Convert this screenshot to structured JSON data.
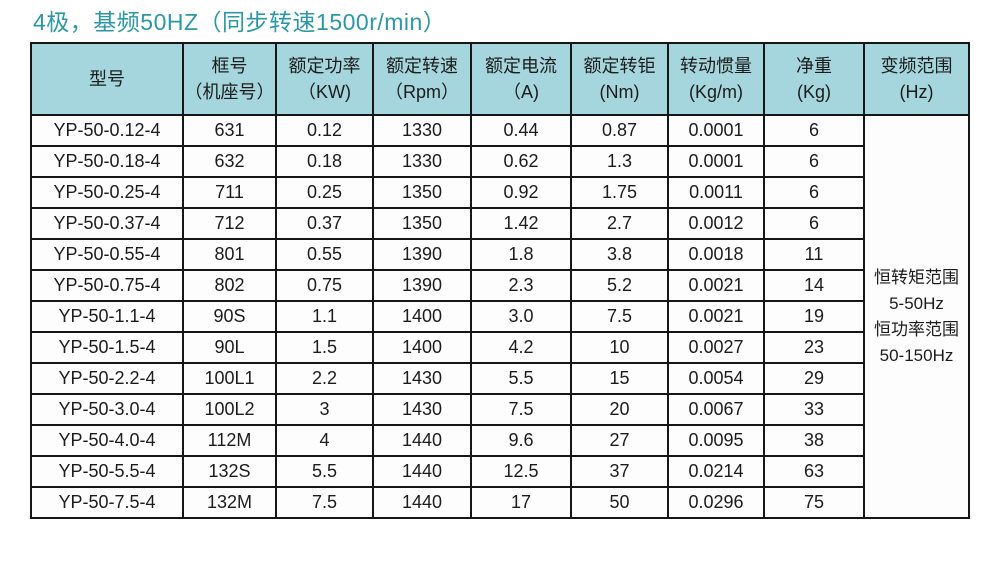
{
  "page_title": "4极，基频50HZ（同步转速1500r/min）",
  "table": {
    "columns": [
      {
        "name": "型号",
        "unit": ""
      },
      {
        "name": "框号",
        "unit": "（机座号）"
      },
      {
        "name": "额定功率",
        "unit": "（KW)"
      },
      {
        "name": "额定转速",
        "unit": "（Rpm）"
      },
      {
        "name": "额定电流",
        "unit": "（A)"
      },
      {
        "name": "额定转钜",
        "unit": "(Nm)"
      },
      {
        "name": "转动惯量",
        "unit": "(Kg/m)"
      },
      {
        "name": "净重",
        "unit": "(Kg)"
      },
      {
        "name": "变频范围",
        "unit": "(Hz)"
      }
    ],
    "rows": [
      [
        "YP-50-0.12-4",
        "631",
        "0.12",
        "1330",
        "0.44",
        "0.87",
        "0.0001",
        "6"
      ],
      [
        "YP-50-0.18-4",
        "632",
        "0.18",
        "1330",
        "0.62",
        "1.3",
        "0.0001",
        "6"
      ],
      [
        "YP-50-0.25-4",
        "711",
        "0.25",
        "1350",
        "0.92",
        "1.75",
        "0.0011",
        "6"
      ],
      [
        "YP-50-0.37-4",
        "712",
        "0.37",
        "1350",
        "1.42",
        "2.7",
        "0.0012",
        "6"
      ],
      [
        "YP-50-0.55-4",
        "801",
        "0.55",
        "1390",
        "1.8",
        "3.8",
        "0.0018",
        "11"
      ],
      [
        "YP-50-0.75-4",
        "802",
        "0.75",
        "1390",
        "2.3",
        "5.2",
        "0.0021",
        "14"
      ],
      [
        "YP-50-1.1-4",
        "90S",
        "1.1",
        "1400",
        "3.0",
        "7.5",
        "0.0021",
        "19"
      ],
      [
        "YP-50-1.5-4",
        "90L",
        "1.5",
        "1400",
        "4.2",
        "10",
        "0.0027",
        "23"
      ],
      [
        "YP-50-2.2-4",
        "100L1",
        "2.2",
        "1430",
        "5.5",
        "15",
        "0.0054",
        "29"
      ],
      [
        "YP-50-3.0-4",
        "100L2",
        "3",
        "1430",
        "7.5",
        "20",
        "0.0067",
        "33"
      ],
      [
        "YP-50-4.0-4",
        "112M",
        "4",
        "1440",
        "9.6",
        "27",
        "0.0095",
        "38"
      ],
      [
        "YP-50-5.5-4",
        "132S",
        "5.5",
        "1440",
        "12.5",
        "37",
        "0.0214",
        "63"
      ],
      [
        "YP-50-7.5-4",
        "132M",
        "7.5",
        "1440",
        "17",
        "50",
        "0.0296",
        "75"
      ]
    ],
    "frequency_range_cell": [
      "恒转矩范围",
      "5-50Hz",
      "恒功率范围",
      "50-150Hz"
    ]
  },
  "colors": {
    "title_text": "#2b98a8",
    "header_bg": "#a5d6dd",
    "border": "#161616",
    "row_bg": "#fdfdfd"
  }
}
